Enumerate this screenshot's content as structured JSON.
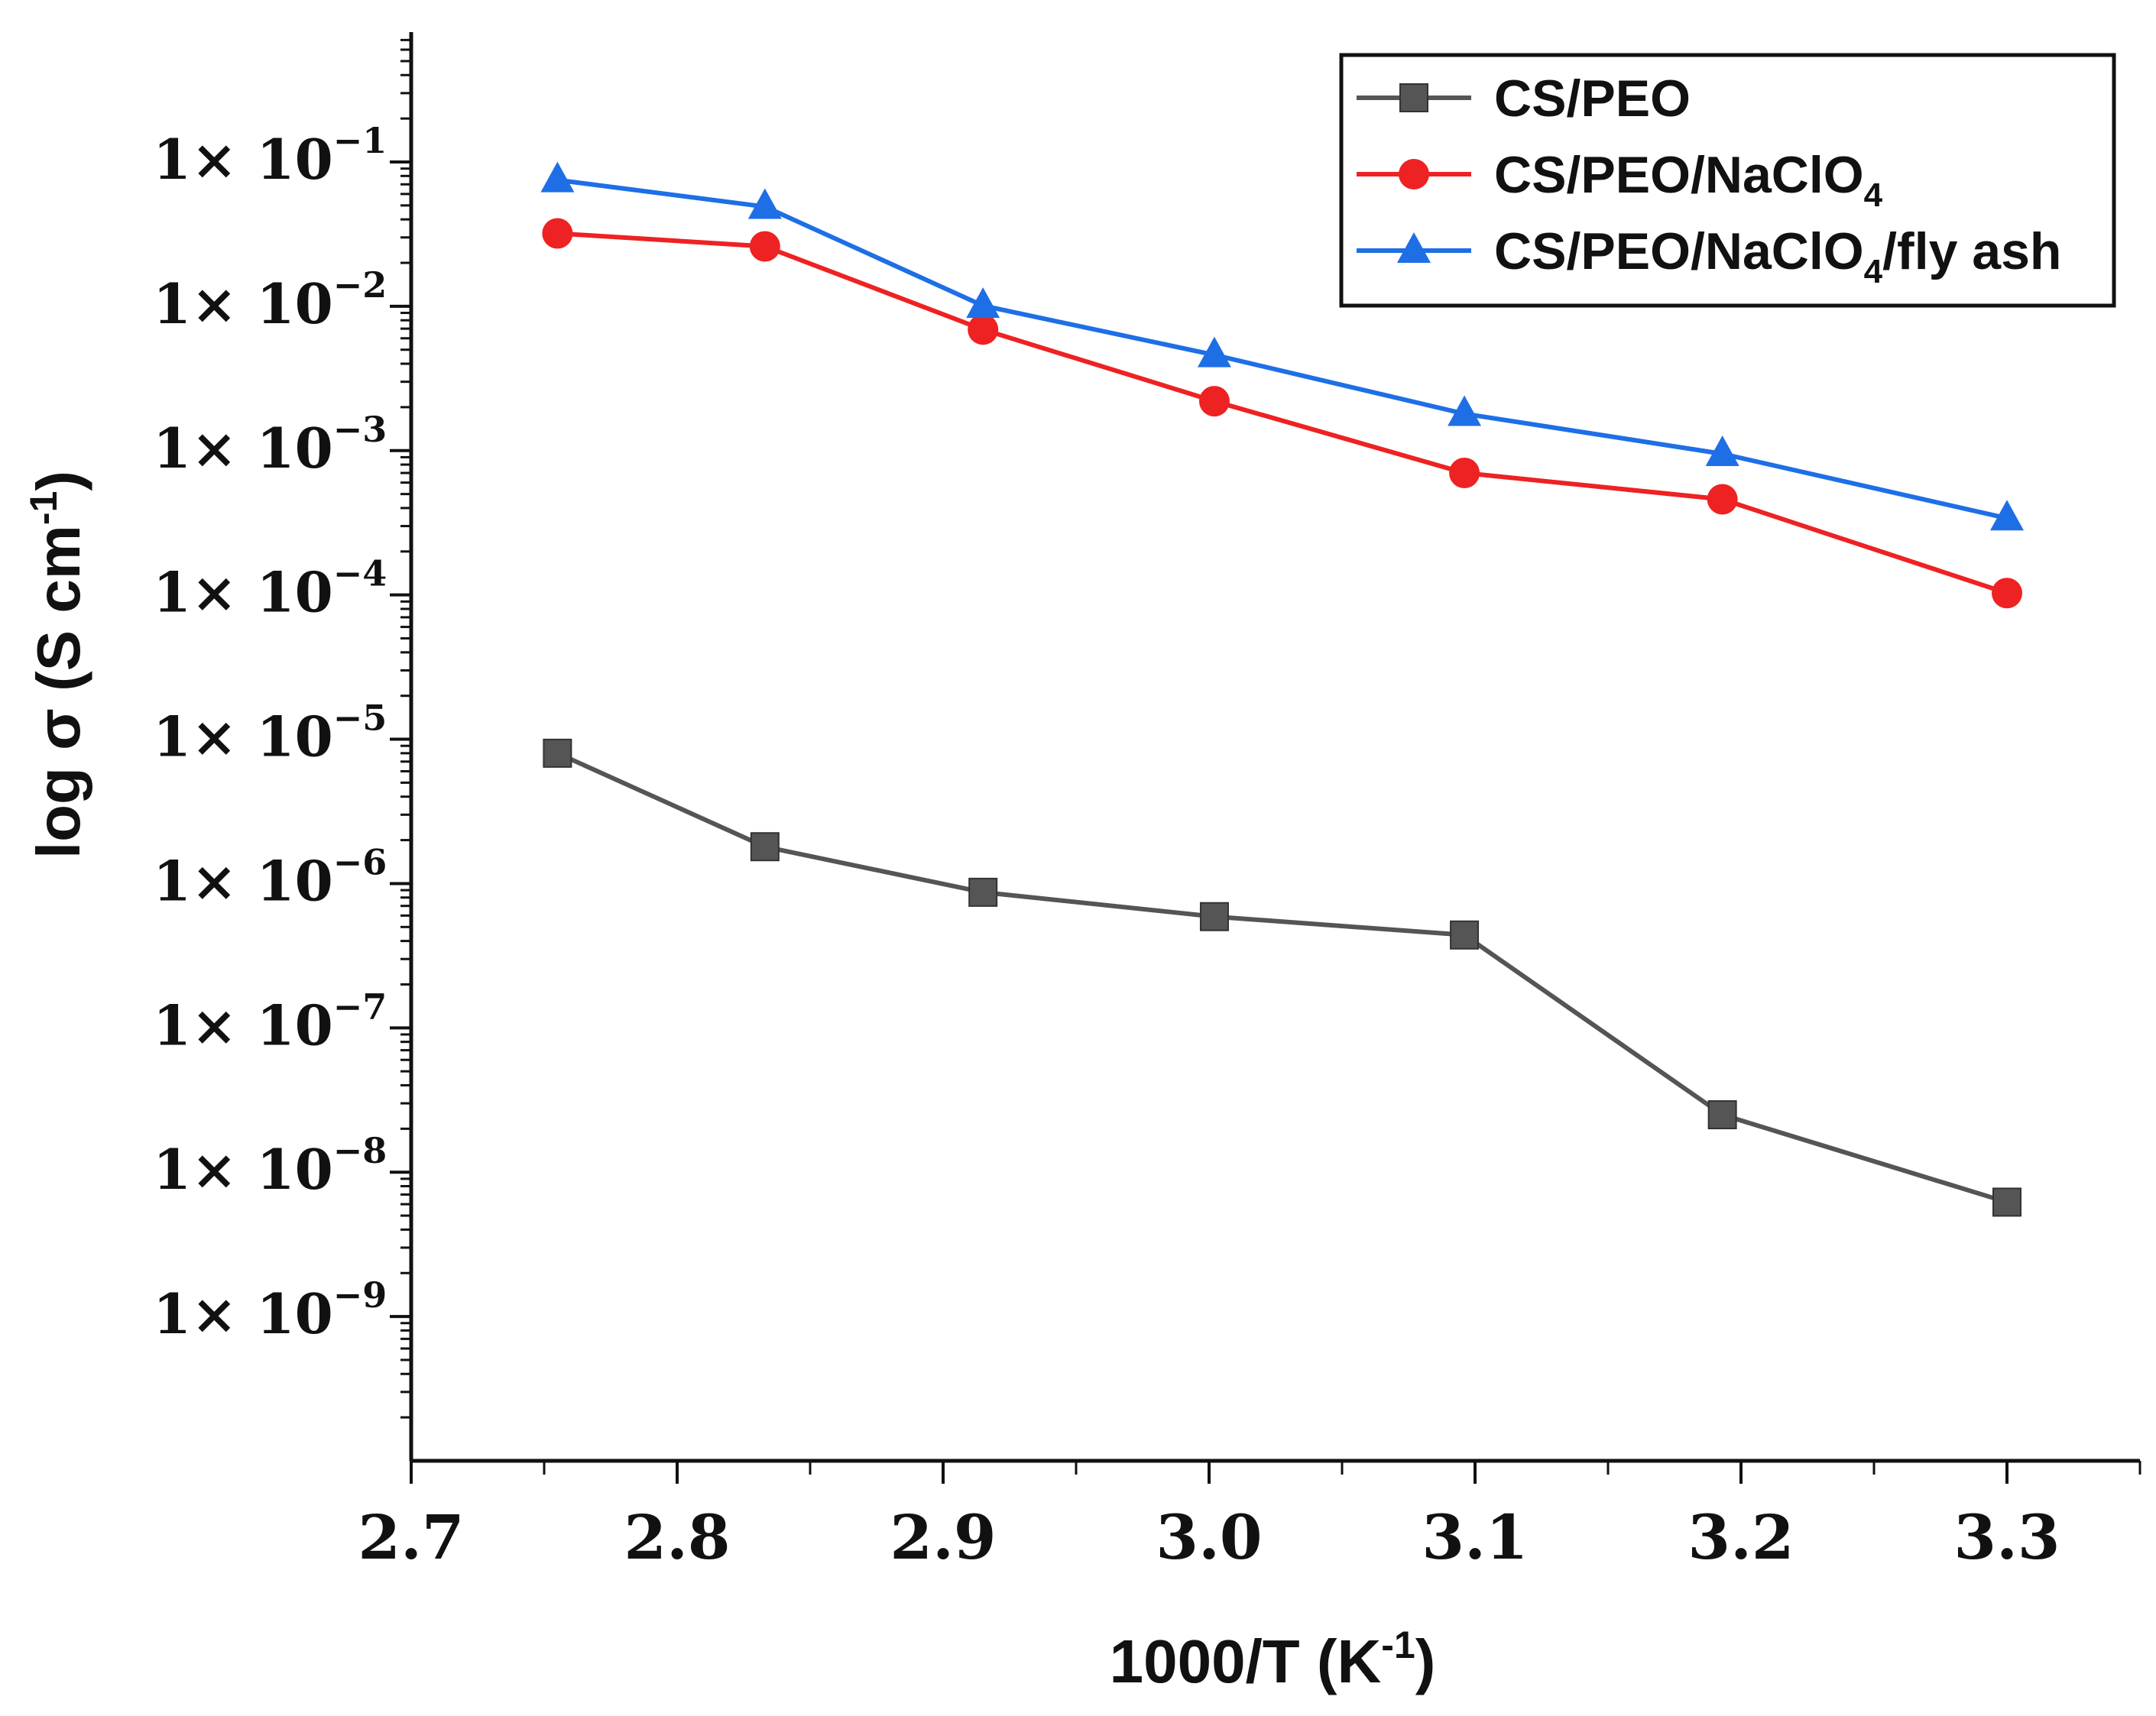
{
  "chart_data": {
    "type": "line",
    "title": "",
    "xlabel": {
      "main": "1000/T (K",
      "sup": "-1",
      "end": ")"
    },
    "ylabel": {
      "main": "log σ (S cm",
      "sup": "-1",
      "end": ")"
    },
    "xlim": [
      2.7,
      3.35
    ],
    "ylim_log10": [
      -10,
      -0.1
    ],
    "x_ticks": [
      {
        "value": 2.7,
        "label": "2.7"
      },
      {
        "value": 2.8,
        "label": "2.8"
      },
      {
        "value": 2.9,
        "label": "2.9"
      },
      {
        "value": 3.0,
        "label": "3.0"
      },
      {
        "value": 3.1,
        "label": "3.1"
      },
      {
        "value": 3.2,
        "label": "3.2"
      },
      {
        "value": 3.3,
        "label": "3.3"
      }
    ],
    "y_ticks": [
      {
        "exp": -1,
        "mantissa": "1×",
        "base": "10",
        "sup": "−1"
      },
      {
        "exp": -2,
        "mantissa": "1×",
        "base": "10",
        "sup": "−2"
      },
      {
        "exp": -3,
        "mantissa": "1×",
        "base": "10",
        "sup": "−3"
      },
      {
        "exp": -4,
        "mantissa": "1×",
        "base": "10",
        "sup": "−4"
      },
      {
        "exp": -5,
        "mantissa": "1×",
        "base": "10",
        "sup": "−5"
      },
      {
        "exp": -6,
        "mantissa": "1×",
        "base": "10",
        "sup": "−6"
      },
      {
        "exp": -7,
        "mantissa": "1×",
        "base": "10",
        "sup": "−7"
      },
      {
        "exp": -8,
        "mantissa": "1×",
        "base": "10",
        "sup": "−8"
      },
      {
        "exp": -9,
        "mantissa": "1×",
        "base": "10",
        "sup": "−9"
      }
    ],
    "x": [
      2.755,
      2.833,
      2.915,
      3.002,
      3.096,
      3.193,
      3.3
    ],
    "series": [
      {
        "name": "CS/PEO",
        "legend": {
          "pre": "CS/PEO",
          "sub": "",
          "post": ""
        },
        "color": "#555555",
        "marker": "square",
        "values": [
          8e-06,
          1.8e-06,
          8.7e-07,
          5.9e-07,
          4.4e-07,
          2.5e-08,
          6.2e-09
        ]
      },
      {
        "name": "CS/PEO/NaClO4",
        "legend": {
          "pre": "CS/PEO/NaClO",
          "sub": "4",
          "post": ""
        },
        "color": "#ee2222",
        "marker": "circle",
        "values": [
          0.032,
          0.026,
          0.0069,
          0.0022,
          0.0007,
          0.00046,
          0.000103
        ]
      },
      {
        "name": "CS/PEO/NaClO4/fly ash",
        "legend": {
          "pre": "CS/PEO/NaClO",
          "sub": "4",
          "post": "/fly ash"
        },
        "color": "#1e6fe6",
        "marker": "triangle",
        "values": [
          0.075,
          0.049,
          0.0101,
          0.0046,
          0.0018,
          0.00095,
          0.00034
        ]
      }
    ],
    "legend_position": "top-right",
    "grid": false
  }
}
